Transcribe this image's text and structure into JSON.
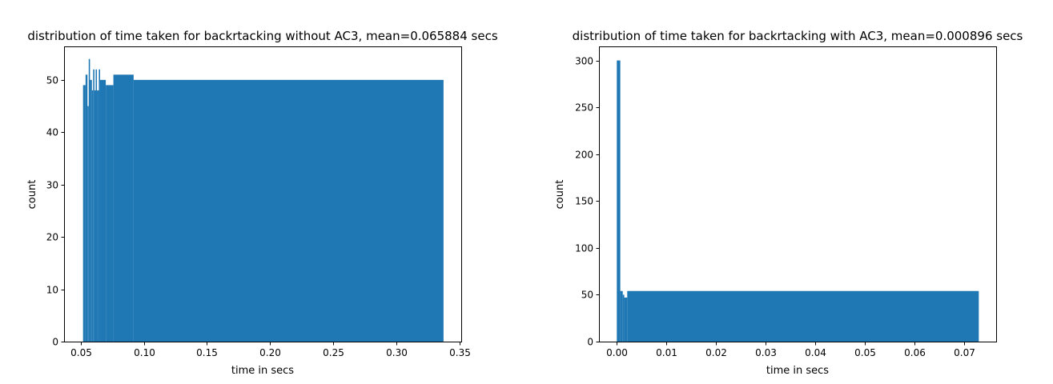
{
  "chart_data": [
    {
      "type": "bar",
      "title": "distribution of time taken for backrtacking without AC3, mean=0.065884 secs",
      "xlabel": "time in secs",
      "ylabel": "count",
      "xlim": [
        0.037,
        0.351
      ],
      "ylim": [
        0,
        56.4
      ],
      "xticks": [
        0.05,
        0.1,
        0.15,
        0.2,
        0.25,
        0.3,
        0.35
      ],
      "xtick_labels": [
        "0.05",
        "0.10",
        "0.15",
        "0.20",
        "0.25",
        "0.30",
        "0.35"
      ],
      "yticks": [
        0,
        10,
        20,
        30,
        40,
        50
      ],
      "ytick_labels": [
        "0",
        "10",
        "20",
        "30",
        "40",
        "50"
      ],
      "grid": false,
      "color": "#1f77b4",
      "bins": [
        {
          "x0": 0.052,
          "x1": 0.054,
          "count": 49
        },
        {
          "x0": 0.054,
          "x1": 0.0555,
          "count": 51
        },
        {
          "x0": 0.0555,
          "x1": 0.0565,
          "count": 45
        },
        {
          "x0": 0.0565,
          "x1": 0.0575,
          "count": 54
        },
        {
          "x0": 0.0575,
          "x1": 0.059,
          "count": 50
        },
        {
          "x0": 0.059,
          "x1": 0.06,
          "count": 48
        },
        {
          "x0": 0.06,
          "x1": 0.061,
          "count": 52
        },
        {
          "x0": 0.061,
          "x1": 0.062,
          "count": 48
        },
        {
          "x0": 0.062,
          "x1": 0.063,
          "count": 52
        },
        {
          "x0": 0.063,
          "x1": 0.0645,
          "count": 48
        },
        {
          "x0": 0.0645,
          "x1": 0.0655,
          "count": 52
        },
        {
          "x0": 0.0655,
          "x1": 0.07,
          "count": 50
        },
        {
          "x0": 0.07,
          "x1": 0.076,
          "count": 49
        },
        {
          "x0": 0.076,
          "x1": 0.092,
          "count": 51
        },
        {
          "x0": 0.092,
          "x1": 0.337,
          "count": 50
        }
      ]
    },
    {
      "type": "bar",
      "title": "distribution of time taken for backrtacking with AC3, mean=0.000896 secs",
      "xlabel": "time in secs",
      "ylabel": "count",
      "xlim": [
        -0.0036,
        0.0765
      ],
      "ylim": [
        0,
        315
      ],
      "xticks": [
        0.0,
        0.01,
        0.02,
        0.03,
        0.04,
        0.05,
        0.06,
        0.07
      ],
      "xtick_labels": [
        "0.00",
        "0.01",
        "0.02",
        "0.03",
        "0.04",
        "0.05",
        "0.06",
        "0.07"
      ],
      "yticks": [
        0,
        50,
        100,
        150,
        200,
        250,
        300
      ],
      "ytick_labels": [
        "0",
        "50",
        "100",
        "150",
        "200",
        "250",
        "300"
      ],
      "grid": false,
      "color": "#1f77b4",
      "bins": [
        {
          "x0": 0.0,
          "x1": 0.0007,
          "count": 300
        },
        {
          "x0": 0.0007,
          "x1": 0.0012,
          "count": 54
        },
        {
          "x0": 0.0012,
          "x1": 0.0015,
          "count": 50
        },
        {
          "x0": 0.0015,
          "x1": 0.0021,
          "count": 47
        },
        {
          "x0": 0.0021,
          "x1": 0.073,
          "count": 54
        }
      ]
    }
  ]
}
